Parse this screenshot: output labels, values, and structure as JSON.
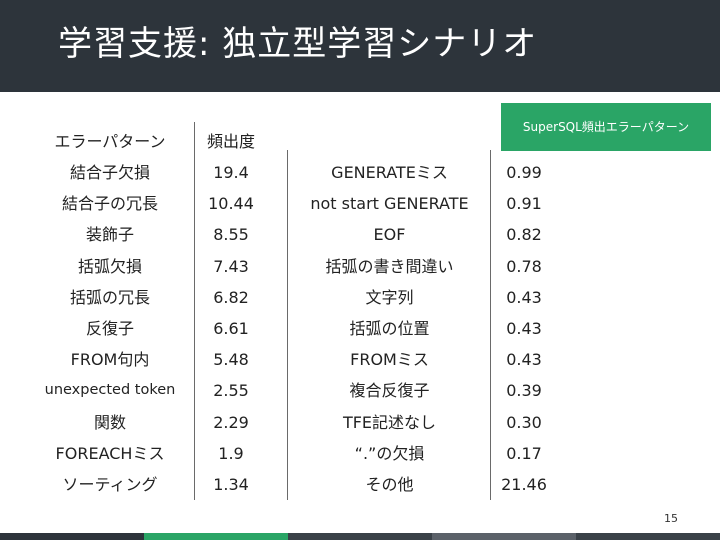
{
  "title": "学習支援: 独立型学習シナリオ",
  "badge_label": "SuperSQL頻出エラーパターン",
  "left_table": {
    "header": [
      "エラーパターン",
      "頻出度"
    ],
    "rows": [
      [
        "結合子欠損",
        "19.4"
      ],
      [
        "結合子の冗長",
        "10.44"
      ],
      [
        "装飾子",
        "8.55"
      ],
      [
        "括弧欠損",
        "7.43"
      ],
      [
        "括弧の冗長",
        "6.82"
      ],
      [
        "反復子",
        "6.61"
      ],
      [
        "FROM句内",
        "5.48"
      ],
      [
        "unexpected token",
        "2.55"
      ],
      [
        "関数",
        "2.29"
      ],
      [
        "FOREACHミス",
        "1.9"
      ],
      [
        "ソーティング",
        "1.34"
      ]
    ]
  },
  "right_table": {
    "rows": [
      [
        "GENERATEミス",
        "0.99"
      ],
      [
        "not start GENERATE",
        "0.91"
      ],
      [
        "EOF",
        "0.82"
      ],
      [
        "括弧の書き間違い",
        "0.78"
      ],
      [
        "文字列",
        "0.43"
      ],
      [
        "括弧の位置",
        "0.43"
      ],
      [
        "FROMミス",
        "0.43"
      ],
      [
        "複合反復子",
        "0.39"
      ],
      [
        "TFE記述なし",
        "0.30"
      ],
      [
        "“.”の欠損",
        "0.17"
      ],
      [
        "その他",
        "21.46"
      ]
    ]
  },
  "page_number": "15",
  "colors": {
    "header_bg": "#2d343b",
    "badge_bg": "#2aa566",
    "footer": [
      "#2d343b",
      "#2aa566",
      "#3a4148",
      "#5b6169",
      "#3a4148"
    ]
  }
}
